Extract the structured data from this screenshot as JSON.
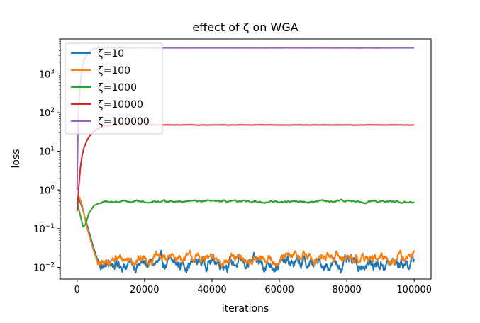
{
  "chart_data": {
    "type": "line",
    "title": "effect of ζ on WGA",
    "xlabel": "iterations",
    "ylabel": "loss",
    "yscale": "log",
    "xlim": [
      -5000,
      105000
    ],
    "ylim": [
      0.005,
      8000
    ],
    "grid": false,
    "legend_position": "top-left",
    "x_ticks": [
      0,
      20000,
      40000,
      60000,
      80000,
      100000
    ],
    "x_tick_labels": [
      "0",
      "20000",
      "40000",
      "60000",
      "80000",
      "100000"
    ],
    "y_ticks": [
      0.01,
      0.1,
      1,
      10,
      100,
      1000
    ],
    "y_tick_labels": [
      {
        "base": "10",
        "exp": "−2"
      },
      {
        "base": "10",
        "exp": "−1"
      },
      {
        "base": "10",
        "exp": "0"
      },
      {
        "base": "10",
        "exp": "1"
      },
      {
        "base": "10",
        "exp": "2"
      },
      {
        "base": "10",
        "exp": "3"
      }
    ],
    "series": [
      {
        "name": "ζ=10",
        "color": "#1f77b4",
        "noise": 0.18,
        "points": [
          [
            0,
            0.3
          ],
          [
            500,
            0.6
          ],
          [
            1500,
            0.35
          ],
          [
            3000,
            0.12
          ],
          [
            5000,
            0.03
          ],
          [
            6500,
            0.012
          ],
          [
            8000,
            0.011
          ],
          [
            10000,
            0.012
          ],
          [
            20000,
            0.012
          ],
          [
            30000,
            0.012
          ],
          [
            40000,
            0.015
          ],
          [
            50000,
            0.012
          ],
          [
            60000,
            0.013
          ],
          [
            70000,
            0.012
          ],
          [
            80000,
            0.012
          ],
          [
            90000,
            0.012
          ],
          [
            100000,
            0.014
          ]
        ]
      },
      {
        "name": "ζ=100",
        "color": "#ff7f0e",
        "noise": 0.14,
        "points": [
          [
            0,
            0.3
          ],
          [
            500,
            0.7
          ],
          [
            1500,
            0.4
          ],
          [
            3000,
            0.1
          ],
          [
            5000,
            0.025
          ],
          [
            6500,
            0.011
          ],
          [
            8000,
            0.012
          ],
          [
            10000,
            0.016
          ],
          [
            20000,
            0.017
          ],
          [
            30000,
            0.018
          ],
          [
            40000,
            0.016
          ],
          [
            50000,
            0.015
          ],
          [
            60000,
            0.016
          ],
          [
            67000,
            0.02
          ],
          [
            70000,
            0.017
          ],
          [
            80000,
            0.019
          ],
          [
            90000,
            0.016
          ],
          [
            100000,
            0.019
          ]
        ]
      },
      {
        "name": "ζ=1000",
        "color": "#2ca02c",
        "noise": 0.03,
        "points": [
          [
            0,
            0.5
          ],
          [
            800,
            0.25
          ],
          [
            1800,
            0.11
          ],
          [
            2500,
            0.13
          ],
          [
            3500,
            0.25
          ],
          [
            5000,
            0.4
          ],
          [
            7000,
            0.47
          ],
          [
            10000,
            0.5
          ],
          [
            20000,
            0.5
          ],
          [
            30000,
            0.52
          ],
          [
            40000,
            0.51
          ],
          [
            50000,
            0.49
          ],
          [
            60000,
            0.5
          ],
          [
            70000,
            0.5
          ],
          [
            80000,
            0.52
          ],
          [
            90000,
            0.5
          ],
          [
            100000,
            0.48
          ]
        ]
      },
      {
        "name": "ζ=10000",
        "color": "#d62728",
        "noise": 0.004,
        "points": [
          [
            0,
            0.28
          ],
          [
            500,
            1.2
          ],
          [
            1000,
            4
          ],
          [
            1500,
            8
          ],
          [
            2000,
            12
          ],
          [
            3000,
            20
          ],
          [
            4000,
            27
          ],
          [
            5000,
            33
          ],
          [
            6500,
            40
          ],
          [
            8000,
            44
          ],
          [
            10000,
            47
          ],
          [
            15000,
            48
          ],
          [
            30000,
            48
          ],
          [
            50000,
            48
          ],
          [
            70000,
            48
          ],
          [
            90000,
            48
          ],
          [
            100000,
            48
          ]
        ]
      },
      {
        "name": "ζ=100000",
        "color": "#9467bd",
        "noise": 0.002,
        "points": [
          [
            0,
            1.0
          ],
          [
            150,
            10
          ],
          [
            300,
            50
          ],
          [
            500,
            150
          ],
          [
            800,
            400
          ],
          [
            1200,
            900
          ],
          [
            1600,
            1500
          ],
          [
            2000,
            2200
          ],
          [
            2800,
            3200
          ],
          [
            3800,
            4000
          ],
          [
            5000,
            4500
          ],
          [
            7000,
            4700
          ],
          [
            10000,
            4700
          ],
          [
            50000,
            4700
          ],
          [
            100000,
            4700
          ]
        ]
      }
    ]
  }
}
